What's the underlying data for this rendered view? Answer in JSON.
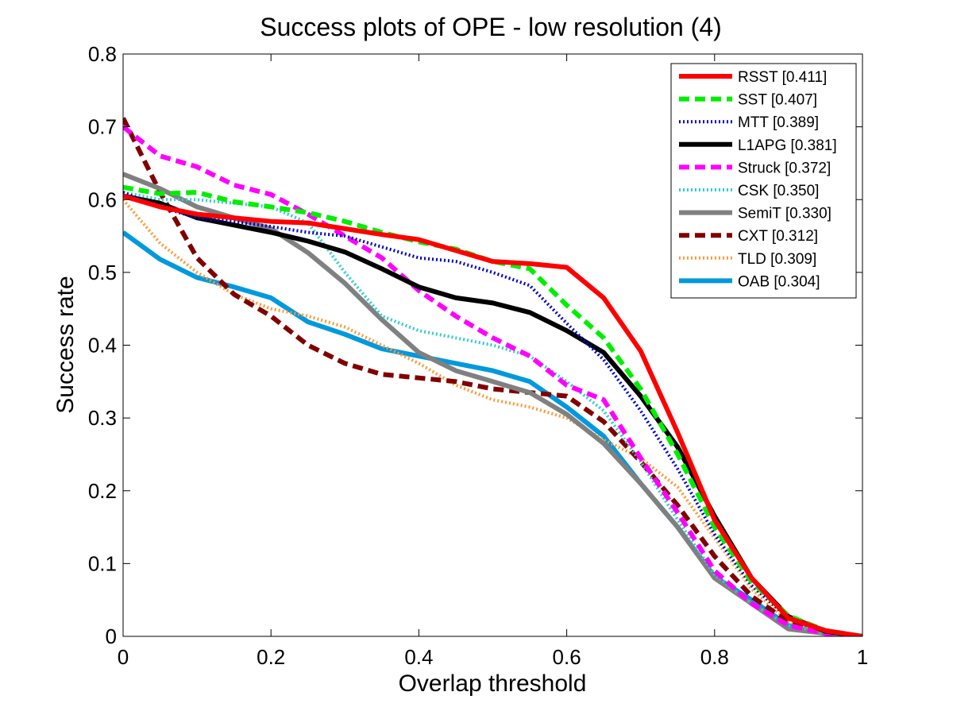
{
  "chart_data": {
    "type": "line",
    "title": "Success plots of OPE - low resolution (4)",
    "xlabel": "Overlap threshold",
    "ylabel": "Success rate",
    "xlim": [
      0,
      1
    ],
    "ylim": [
      0,
      0.8
    ],
    "xticks": [
      "0",
      "0.2",
      "0.4",
      "0.6",
      "0.8",
      "1"
    ],
    "yticks": [
      "0",
      "0.1",
      "0.2",
      "0.3",
      "0.4",
      "0.5",
      "0.6",
      "0.7",
      "0.8"
    ],
    "grid": false,
    "legend_position": "top-right",
    "x": [
      0,
      0.05,
      0.1,
      0.15,
      0.2,
      0.25,
      0.3,
      0.35,
      0.4,
      0.45,
      0.5,
      0.55,
      0.6,
      0.65,
      0.7,
      0.75,
      0.8,
      0.85,
      0.9,
      0.95,
      1.0
    ],
    "series": [
      {
        "name": "RSST [0.411]",
        "color": "#ff0000",
        "dash": "solid",
        "values": [
          0.605,
          0.59,
          0.58,
          0.575,
          0.57,
          0.568,
          0.56,
          0.552,
          0.545,
          0.53,
          0.515,
          0.512,
          0.507,
          0.465,
          0.392,
          0.28,
          0.16,
          0.08,
          0.025,
          0.008,
          0.0
        ]
      },
      {
        "name": "SST [0.407]",
        "color": "#00ee00",
        "dash": "dashed",
        "values": [
          0.617,
          0.608,
          0.61,
          0.597,
          0.59,
          0.582,
          0.57,
          0.555,
          0.542,
          0.532,
          0.515,
          0.505,
          0.455,
          0.41,
          0.34,
          0.25,
          0.15,
          0.075,
          0.028,
          0.008,
          0.0
        ]
      },
      {
        "name": "MTT [0.389]",
        "color": "#0000cc",
        "dash": "dotted",
        "values": [
          0.61,
          0.59,
          0.575,
          0.57,
          0.563,
          0.555,
          0.55,
          0.535,
          0.52,
          0.515,
          0.5,
          0.482,
          0.43,
          0.38,
          0.31,
          0.23,
          0.14,
          0.07,
          0.025,
          0.007,
          0.0
        ]
      },
      {
        "name": "L1APG [0.381]",
        "color": "#000000",
        "dash": "solid",
        "values": [
          0.605,
          0.595,
          0.575,
          0.565,
          0.555,
          0.543,
          0.528,
          0.505,
          0.48,
          0.465,
          0.458,
          0.445,
          0.42,
          0.39,
          0.33,
          0.26,
          0.165,
          0.08,
          0.027,
          0.007,
          0.0
        ]
      },
      {
        "name": "Struck [0.372]",
        "color": "#ff00ff",
        "dash": "dashed",
        "values": [
          0.7,
          0.66,
          0.645,
          0.62,
          0.607,
          0.58,
          0.55,
          0.52,
          0.475,
          0.44,
          0.41,
          0.385,
          0.345,
          0.325,
          0.245,
          0.17,
          0.09,
          0.045,
          0.015,
          0.004,
          0.0
        ]
      },
      {
        "name": "CSK [0.350]",
        "color": "#33cccc",
        "dash": "dotted",
        "values": [
          0.61,
          0.6,
          0.6,
          0.595,
          0.59,
          0.568,
          0.5,
          0.44,
          0.42,
          0.41,
          0.4,
          0.385,
          0.35,
          0.31,
          0.24,
          0.16,
          0.085,
          0.045,
          0.015,
          0.004,
          0.0
        ]
      },
      {
        "name": "SemiT [0.330]",
        "color": "#808080",
        "dash": "solid",
        "values": [
          0.635,
          0.615,
          0.59,
          0.575,
          0.56,
          0.527,
          0.485,
          0.435,
          0.39,
          0.365,
          0.35,
          0.335,
          0.305,
          0.265,
          0.21,
          0.15,
          0.08,
          0.045,
          0.01,
          0.004,
          0.0
        ]
      },
      {
        "name": "CXT [0.312]",
        "color": "#800000",
        "dash": "dashed",
        "values": [
          0.712,
          0.61,
          0.52,
          0.47,
          0.44,
          0.4,
          0.375,
          0.36,
          0.355,
          0.35,
          0.34,
          0.335,
          0.33,
          0.295,
          0.24,
          0.18,
          0.11,
          0.055,
          0.02,
          0.005,
          0.0
        ]
      },
      {
        "name": "TLD [0.309]",
        "color": "#ff9933",
        "dash": "dotted",
        "values": [
          0.6,
          0.54,
          0.5,
          0.47,
          0.45,
          0.44,
          0.425,
          0.4,
          0.375,
          0.345,
          0.325,
          0.315,
          0.3,
          0.27,
          0.245,
          0.205,
          0.135,
          0.065,
          0.02,
          0.005,
          0.0
        ]
      },
      {
        "name": "OAB [0.304]",
        "color": "#0099dd",
        "dash": "solid",
        "values": [
          0.555,
          0.518,
          0.493,
          0.48,
          0.465,
          0.432,
          0.415,
          0.395,
          0.385,
          0.375,
          0.365,
          0.35,
          0.315,
          0.275,
          0.21,
          0.15,
          0.082,
          0.05,
          0.015,
          0.006,
          0.0
        ]
      }
    ]
  }
}
